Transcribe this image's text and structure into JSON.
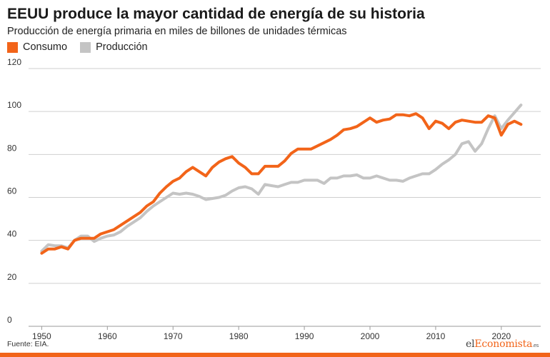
{
  "chart_data": {
    "type": "line",
    "title": "EEUU produce la mayor cantidad de energía de su historia",
    "subtitle": "Producción de energía primaria en miles de billones de unidades térmicas",
    "ylim": [
      0,
      120
    ],
    "xlim": [
      1948,
      2026
    ],
    "yticks": [
      0,
      20,
      40,
      60,
      80,
      100,
      120
    ],
    "xticks": [
      1950,
      1960,
      1970,
      1980,
      1990,
      2000,
      2010,
      2020
    ],
    "grid": true,
    "legend_position": "top-left",
    "source": "Fuente: EIA.",
    "logo": {
      "part1": "el",
      "part2": "Economista",
      "part3": ".es"
    },
    "x": [
      1950,
      1951,
      1952,
      1953,
      1954,
      1955,
      1956,
      1957,
      1958,
      1959,
      1960,
      1961,
      1962,
      1963,
      1964,
      1965,
      1966,
      1967,
      1968,
      1969,
      1970,
      1971,
      1972,
      1973,
      1974,
      1975,
      1976,
      1977,
      1978,
      1979,
      1980,
      1981,
      1982,
      1983,
      1984,
      1985,
      1986,
      1987,
      1988,
      1989,
      1990,
      1991,
      1992,
      1993,
      1994,
      1995,
      1996,
      1997,
      1998,
      1999,
      2000,
      2001,
      2002,
      2003,
      2004,
      2005,
      2006,
      2007,
      2008,
      2009,
      2010,
      2011,
      2012,
      2013,
      2014,
      2015,
      2016,
      2017,
      2018,
      2019,
      2020,
      2021,
      2022,
      2023
    ],
    "series": [
      {
        "name": "Consumo",
        "color": "#f26419",
        "values": [
          34.0,
          36.0,
          36.0,
          37.0,
          36.0,
          40.0,
          41.0,
          41.0,
          41.0,
          43.0,
          44.0,
          45.0,
          47.0,
          49.0,
          51.0,
          53.0,
          56.0,
          58.0,
          62.0,
          65.0,
          67.5,
          69.0,
          72.0,
          74.0,
          72.0,
          70.0,
          74.0,
          76.5,
          78.0,
          79.0,
          76.0,
          74.0,
          71.0,
          71.0,
          74.5,
          74.5,
          74.5,
          77.0,
          80.5,
          82.5,
          82.5,
          82.5,
          84.0,
          85.5,
          87.0,
          89.0,
          91.5,
          92.0,
          93.0,
          95.0,
          97.0,
          95.0,
          96.0,
          96.5,
          98.5,
          98.5,
          98.0,
          99.0,
          97.0,
          92.0,
          95.5,
          94.5,
          92.0,
          95.0,
          96.0,
          95.5,
          95.0,
          95.0,
          98.0,
          97.0,
          89.0,
          94.0,
          95.5,
          94.0
        ]
      },
      {
        "name": "Producción",
        "color": "#c4c4c4",
        "values": [
          35.0,
          38.0,
          37.5,
          37.5,
          36.5,
          40.0,
          42.0,
          42.0,
          39.5,
          41.0,
          42.0,
          42.5,
          44.0,
          46.5,
          48.5,
          50.5,
          53.5,
          56.0,
          58.0,
          60.0,
          62.0,
          61.5,
          62.0,
          61.5,
          60.5,
          59.0,
          59.5,
          60.0,
          61.0,
          63.0,
          64.5,
          65.0,
          64.0,
          61.5,
          66.0,
          65.5,
          65.0,
          66.0,
          67.0,
          67.0,
          68.0,
          68.0,
          68.0,
          66.5,
          69.0,
          69.0,
          70.0,
          70.0,
          70.5,
          69.0,
          69.0,
          70.0,
          69.0,
          68.0,
          68.0,
          67.5,
          69.0,
          70.0,
          71.0,
          71.0,
          73.0,
          75.5,
          77.5,
          80.0,
          85.0,
          86.0,
          81.5,
          85.0,
          92.0,
          98.0,
          92.0,
          96.0,
          99.5,
          103.0
        ]
      }
    ]
  }
}
